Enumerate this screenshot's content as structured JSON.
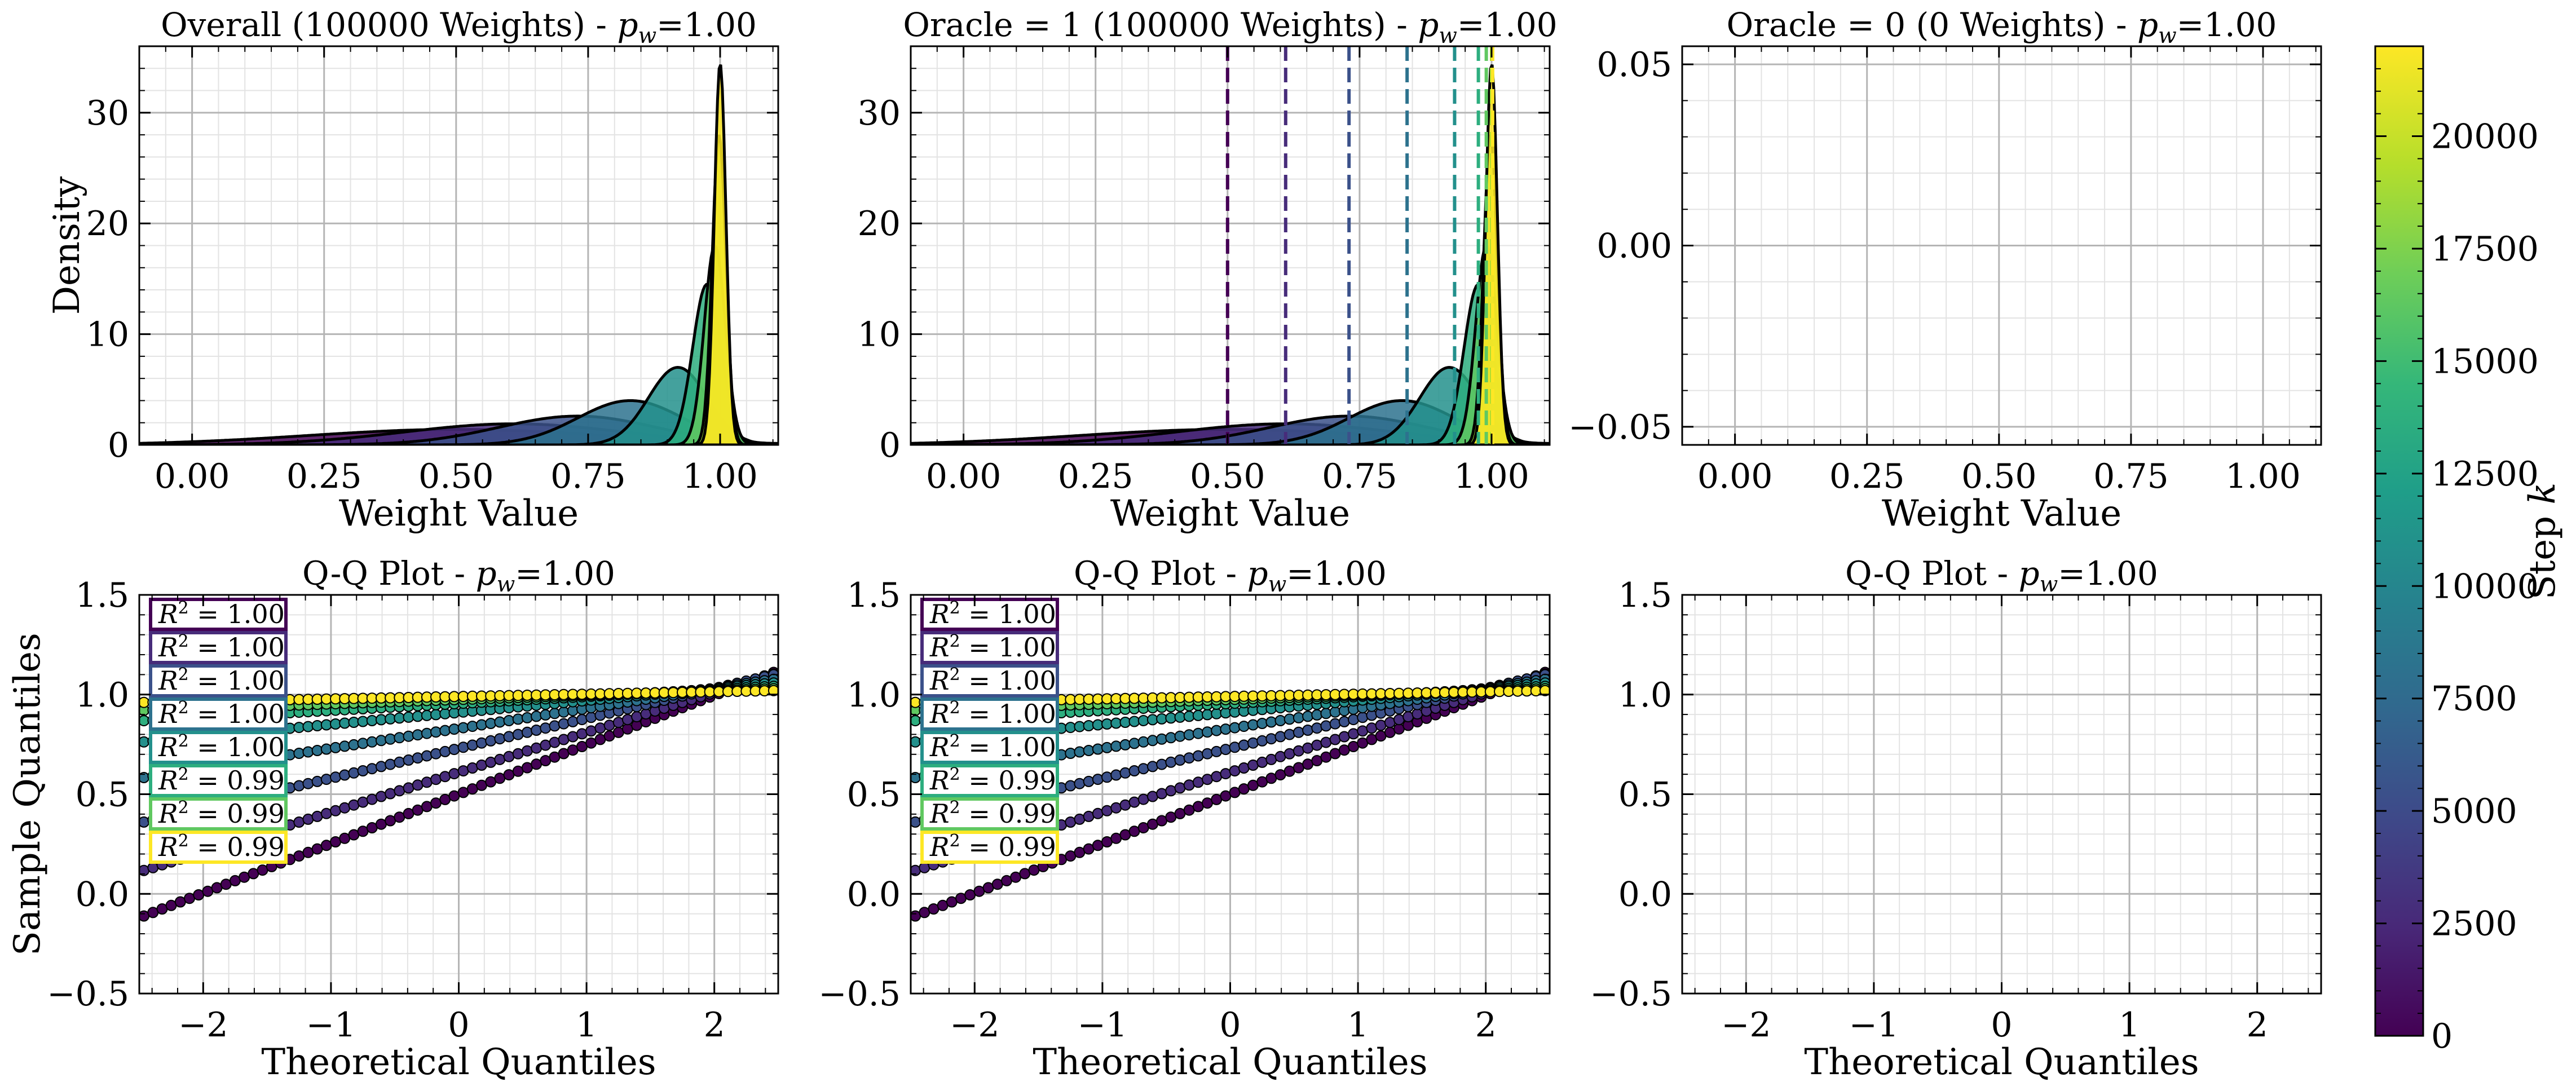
{
  "figure": {
    "panels": [
      {
        "id": "p1",
        "title": "Overall (100000 Weights) - ",
        "title_var": "p",
        "title_sub": "w",
        "title_tail": "=1.00",
        "xlabel": "Weight Value",
        "ylabel": "Density"
      },
      {
        "id": "p2",
        "title": "Oracle = 1 (100000 Weights) - ",
        "title_var": "p",
        "title_sub": "w",
        "title_tail": "=1.00",
        "xlabel": "Weight Value",
        "ylabel": ""
      },
      {
        "id": "p3",
        "title": "Oracle = 0 (0 Weights) - ",
        "title_var": "p",
        "title_sub": "w",
        "title_tail": "=1.00",
        "xlabel": "Weight Value",
        "ylabel": ""
      },
      {
        "id": "p4",
        "title": "Q-Q Plot - ",
        "title_var": "p",
        "title_sub": "w",
        "title_tail": "=1.00",
        "xlabel": "Theoretical Quantiles",
        "ylabel": "Sample Quantiles"
      },
      {
        "id": "p5",
        "title": "Q-Q Plot - ",
        "title_var": "p",
        "title_sub": "w",
        "title_tail": "=1.00",
        "xlabel": "Theoretical Quantiles",
        "ylabel": ""
      },
      {
        "id": "p6",
        "title": "Q-Q Plot - ",
        "title_var": "p",
        "title_sub": "w",
        "title_tail": "=1.00",
        "xlabel": "Theoretical Quantiles",
        "ylabel": ""
      }
    ],
    "colorbar": {
      "label": "Step ",
      "label_var": "k",
      "ticks": [
        0,
        2500,
        5000,
        7500,
        10000,
        12500,
        15000,
        17500,
        20000
      ],
      "range": [
        0,
        22000
      ]
    }
  },
  "chart_data": [
    {
      "type": "area",
      "panel": "p1",
      "x_range": [
        -0.1,
        1.11
      ],
      "y_range": [
        0,
        36
      ],
      "x_ticks": [
        0.0,
        0.25,
        0.5,
        0.75,
        1.0
      ],
      "x_tick_labels": [
        "0.00",
        "0.25",
        "0.50",
        "0.75",
        "1.00"
      ],
      "y_ticks": [
        0,
        10,
        20,
        30
      ],
      "y_tick_labels": [
        "0",
        "10",
        "20",
        "30"
      ],
      "series": [
        {
          "step": 0,
          "mean": 0.5,
          "sd": 0.28,
          "peak": 1.4
        },
        {
          "step": 2750,
          "mean": 0.61,
          "sd": 0.21,
          "peak": 1.9
        },
        {
          "step": 5500,
          "mean": 0.73,
          "sd": 0.15,
          "peak": 2.6
        },
        {
          "step": 8250,
          "mean": 0.83,
          "sd": 0.1,
          "peak": 4.0
        },
        {
          "step": 11000,
          "mean": 0.92,
          "sd": 0.056,
          "peak": 7.0
        },
        {
          "step": 13750,
          "mean": 0.975,
          "sd": 0.027,
          "peak": 14.5
        },
        {
          "step": 16500,
          "mean": 0.99,
          "sd": 0.02,
          "peak": 18.0
        },
        {
          "step": 19250,
          "mean": 0.998,
          "sd": 0.013,
          "peak": 28.0
        },
        {
          "step": 22000,
          "mean": 1.0,
          "sd": 0.011,
          "peak": 34.5
        }
      ]
    },
    {
      "type": "area",
      "panel": "p2",
      "x_range": [
        -0.1,
        1.11
      ],
      "y_range": [
        0,
        36
      ],
      "x_ticks": [
        0.0,
        0.25,
        0.5,
        0.75,
        1.0
      ],
      "x_tick_labels": [
        "0.00",
        "0.25",
        "0.50",
        "0.75",
        "1.00"
      ],
      "y_ticks": [
        0,
        10,
        20,
        30
      ],
      "y_tick_labels": [
        "0",
        "10",
        "20",
        "30"
      ],
      "vlines": [
        {
          "step": 0,
          "x": 0.5
        },
        {
          "step": 2750,
          "x": 0.61
        },
        {
          "step": 5500,
          "x": 0.73
        },
        {
          "step": 8250,
          "x": 0.84
        },
        {
          "step": 11000,
          "x": 0.93
        },
        {
          "step": 13750,
          "x": 0.975
        },
        {
          "step": 16500,
          "x": 0.99
        },
        {
          "step": 19250,
          "x": 1.0
        },
        {
          "step": 22000,
          "x": 1.002
        }
      ],
      "series": "same-as-p1"
    },
    {
      "type": "area",
      "panel": "p3",
      "x_range": [
        -0.1,
        1.11
      ],
      "y_range": [
        -0.055,
        0.055
      ],
      "x_ticks": [
        0.0,
        0.25,
        0.5,
        0.75,
        1.0
      ],
      "x_tick_labels": [
        "0.00",
        "0.25",
        "0.50",
        "0.75",
        "1.00"
      ],
      "y_ticks": [
        -0.05,
        0.0,
        0.05
      ],
      "y_tick_labels": [
        "−0.05",
        "0.00",
        "0.05"
      ],
      "series": []
    },
    {
      "type": "scatter",
      "panel": "p4",
      "x_range": [
        -2.5,
        2.5
      ],
      "y_range": [
        -0.5,
        1.5
      ],
      "x_ticks": [
        -2,
        -1,
        0,
        1,
        2
      ],
      "x_tick_labels": [
        "−2",
        "−1",
        "0",
        "1",
        "2"
      ],
      "y_ticks": [
        -0.5,
        0.0,
        0.5,
        1.0,
        1.5
      ],
      "y_tick_labels": [
        "−0.5",
        "0.0",
        "0.5",
        "1.0",
        "1.5"
      ],
      "series": [
        {
          "step": 0,
          "intercept": 0.5,
          "slope": 0.248,
          "r2": "1.00"
        },
        {
          "step": 2750,
          "intercept": 0.61,
          "slope": 0.2,
          "r2": "1.00"
        },
        {
          "step": 5500,
          "intercept": 0.73,
          "slope": 0.15,
          "r2": "1.00"
        },
        {
          "step": 8250,
          "intercept": 0.83,
          "slope": 0.1,
          "r2": "1.00"
        },
        {
          "step": 11000,
          "intercept": 0.91,
          "slope": 0.06,
          "r2": "1.00"
        },
        {
          "step": 13750,
          "intercept": 0.955,
          "slope": 0.035,
          "r2": "0.99"
        },
        {
          "step": 16500,
          "intercept": 0.975,
          "slope": 0.022,
          "r2": "0.99"
        },
        {
          "step": 22000,
          "intercept": 0.99,
          "slope": 0.012,
          "r2": "0.99"
        }
      ]
    },
    {
      "type": "scatter",
      "panel": "p5",
      "x_range": [
        -2.5,
        2.5
      ],
      "y_range": [
        -0.5,
        1.5
      ],
      "x_ticks": [
        -2,
        -1,
        0,
        1,
        2
      ],
      "x_tick_labels": [
        "−2",
        "−1",
        "0",
        "1",
        "2"
      ],
      "y_ticks": [
        -0.5,
        0.0,
        0.5,
        1.0,
        1.5
      ],
      "y_tick_labels": [
        "−0.5",
        "0.0",
        "0.5",
        "1.0",
        "1.5"
      ],
      "series": "same-as-p4"
    },
    {
      "type": "scatter",
      "panel": "p6",
      "x_range": [
        -2.5,
        2.5
      ],
      "y_range": [
        -0.5,
        1.5
      ],
      "x_ticks": [
        -2,
        -1,
        0,
        1,
        2
      ],
      "x_tick_labels": [
        "−2",
        "−1",
        "0",
        "1",
        "2"
      ],
      "y_ticks": [
        -0.5,
        0.0,
        0.5,
        1.0,
        1.5
      ],
      "y_tick_labels": [
        "−0.5",
        "0.0",
        "0.5",
        "1.0",
        "1.5"
      ],
      "series": []
    }
  ],
  "colors": {
    "viridis": [
      "#440154",
      "#482878",
      "#3e4989",
      "#31688e",
      "#26828e",
      "#1f9e89",
      "#35b779",
      "#6ece58",
      "#b5de2b",
      "#fde725"
    ]
  }
}
